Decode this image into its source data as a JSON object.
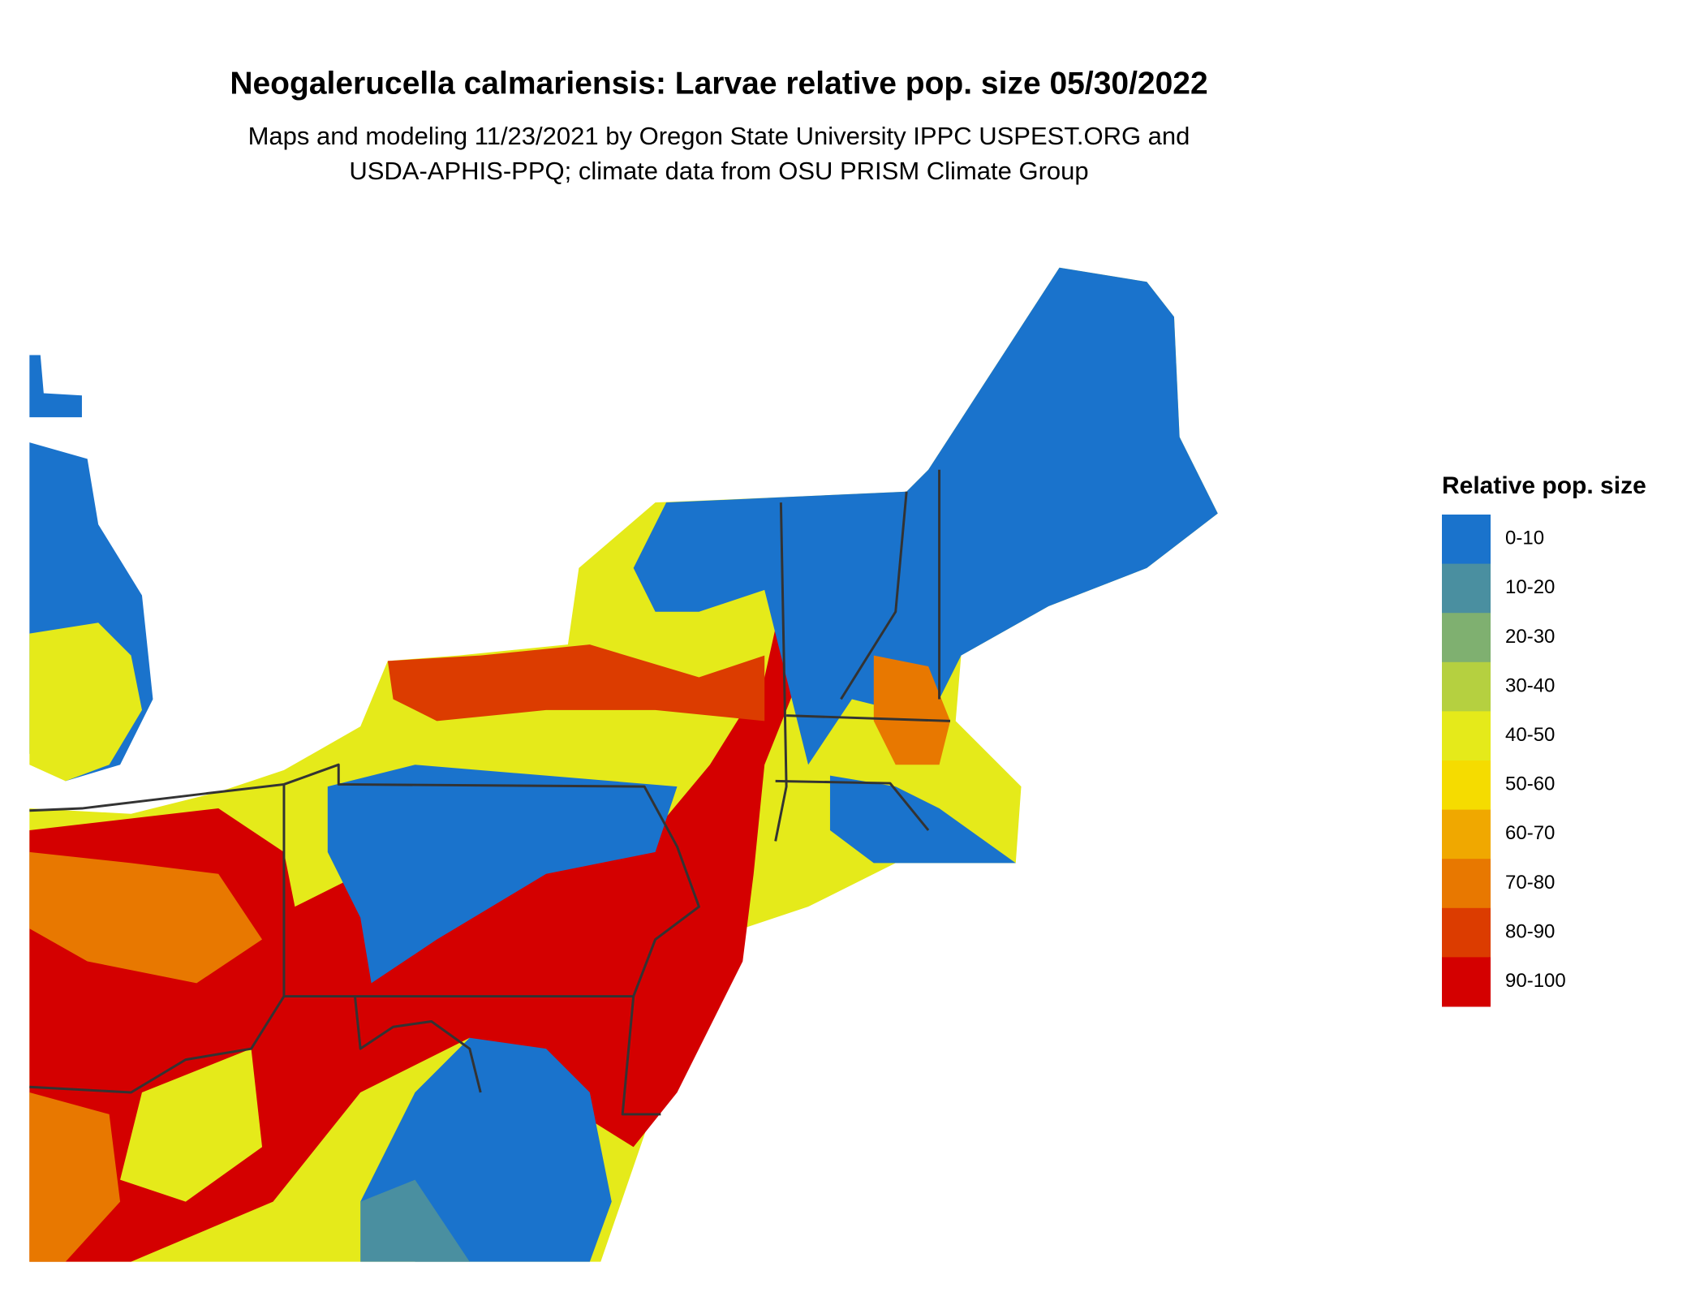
{
  "header": {
    "title": "Neogalerucella calmariensis: Larvae relative pop. size 05/30/2022",
    "subtitle": [
      "Maps and modeling 11/23/2021 by Oregon State University IPPC USPEST.ORG and",
      "USDA-APHIS-PPQ; climate data from OSU PRISM Climate Group"
    ]
  },
  "legend": {
    "title": "Relative pop. size",
    "items": [
      {
        "label": "0-10",
        "color": "#1a73cc"
      },
      {
        "label": "10-20",
        "color": "#4a8fa0"
      },
      {
        "label": "20-30",
        "color": "#7fb070"
      },
      {
        "label": "30-40",
        "color": "#b5d040"
      },
      {
        "label": "40-50",
        "color": "#e5ea1a"
      },
      {
        "label": "50-60",
        "color": "#f5dc00"
      },
      {
        "label": "60-70",
        "color": "#f0a800"
      },
      {
        "label": "70-80",
        "color": "#e87800"
      },
      {
        "label": "80-90",
        "color": "#dc3c00"
      },
      {
        "label": "90-100",
        "color": "#d40000"
      }
    ]
  }
}
